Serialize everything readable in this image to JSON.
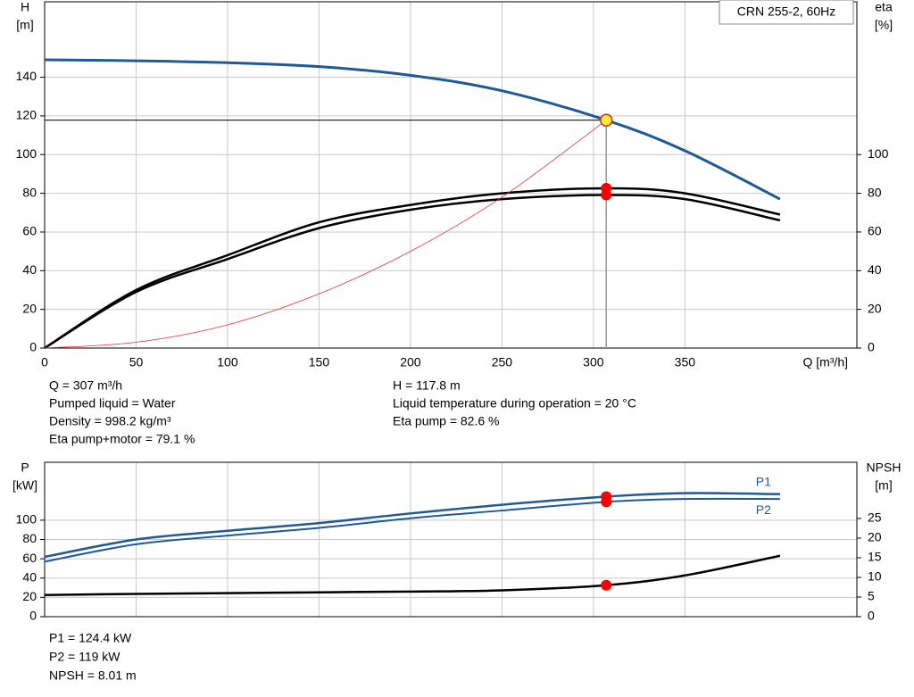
{
  "chart_data": [
    {
      "type": "line",
      "box_label": "CRN 255-2, 60Hz",
      "y_label": [
        "H",
        "[m]"
      ],
      "y2_label": [
        "eta",
        "[%]"
      ],
      "x_label": "Q [m³/h]",
      "x": [
        0,
        50,
        100,
        150,
        200,
        250,
        307,
        350,
        402
      ],
      "xlim": [
        0,
        444
      ],
      "xticks": [
        0,
        50,
        100,
        150,
        200,
        250,
        300,
        350
      ],
      "show_x_labels": true,
      "ylim": [
        0,
        179
      ],
      "yticks": [
        0,
        20,
        40,
        60,
        80,
        100,
        120,
        140
      ],
      "y2lim": [
        0,
        179
      ],
      "y2ticks": [
        0,
        20,
        40,
        60,
        80,
        100
      ],
      "grid": true,
      "operating_point": {
        "x": 307
      },
      "series": [
        {
          "color": "#1f5a96",
          "width": 3,
          "values": [
            149,
            148.5,
            147.5,
            145.5,
            141,
            133,
            117.8,
            102,
            77
          ]
        },
        {
          "color": "#000000",
          "width": 2.5,
          "axis": "y2",
          "values": [
            0,
            30,
            48,
            65,
            74,
            80,
            82.6,
            80,
            69
          ]
        },
        {
          "color": "#000000",
          "width": 2.5,
          "axis": "y2",
          "values": [
            0,
            29,
            46,
            62,
            71.5,
            77,
            79.1,
            77,
            66
          ]
        },
        {
          "color": "#e83030",
          "width": 0.8,
          "values": [
            0,
            3,
            12,
            28,
            50,
            78,
            117.8,
            null,
            null
          ]
        }
      ],
      "info_left": [
        "Q = 307 m³/h",
        "Pumped liquid = Water",
        "Density = 998.2 kg/m³",
        "Eta pump+motor = 79.1 %"
      ],
      "info_right": [
        "H = 117.8 m",
        "Liquid temperature during operation = 20 °C",
        "Eta pump = 82.6 %"
      ]
    },
    {
      "type": "line",
      "y_label": [
        "P",
        "[kW]"
      ],
      "y2_label": [
        "NPSH",
        "[m]"
      ],
      "x": [
        0,
        50,
        100,
        150,
        200,
        250,
        307,
        350,
        402
      ],
      "xlim": [
        0,
        444
      ],
      "xticks": [
        0,
        50,
        100,
        150,
        200,
        250,
        300,
        350
      ],
      "show_x_labels": false,
      "ylim": [
        0,
        160
      ],
      "yticks": [
        0,
        20,
        40,
        60,
        80,
        100
      ],
      "y2lim": [
        0,
        39.3
      ],
      "y2ticks": [
        0,
        5,
        10,
        15,
        20,
        25
      ],
      "grid": true,
      "operating_point": {
        "x": 307
      },
      "series": [
        {
          "name": "P1",
          "color": "#1f5a96",
          "width": 2.5,
          "values": [
            62,
            80,
            89,
            97,
            107,
            116,
            124.4,
            128,
            127
          ]
        },
        {
          "name": "P2",
          "color": "#1f5a96",
          "width": 2,
          "values": [
            57,
            75,
            84,
            92,
            102,
            110,
            119,
            122,
            122
          ]
        },
        {
          "color": "#000000",
          "width": 2.5,
          "axis": "y2",
          "values": [
            5.5,
            5.8,
            6,
            6.2,
            6.4,
            6.7,
            8.01,
            10.5,
            15.5
          ]
        }
      ],
      "info_left": [
        "P1 = 124.4 kW",
        "P2 = 119 kW",
        "NPSH = 8.01 m"
      ]
    }
  ]
}
